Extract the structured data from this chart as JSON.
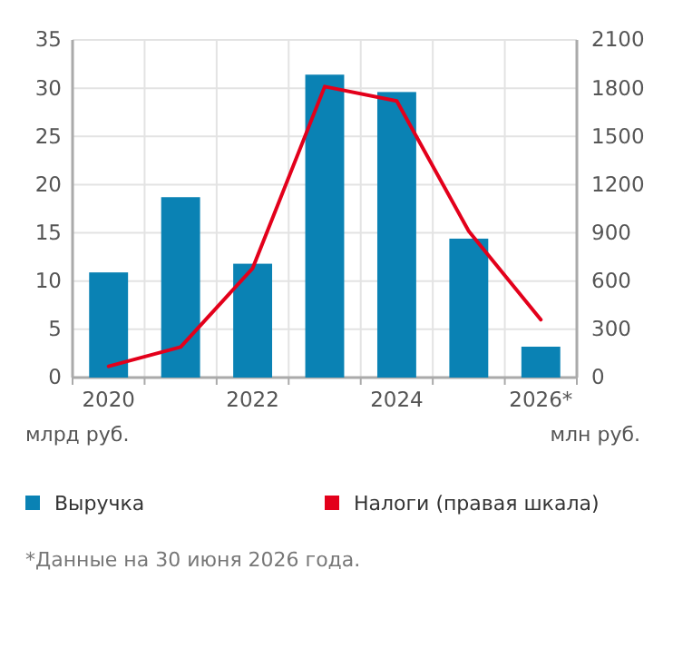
{
  "chart_data": {
    "type": "bar",
    "categories": [
      "2020",
      null,
      "2022",
      null,
      "2024",
      null,
      "2026*"
    ],
    "series": [
      {
        "name": "Выручка",
        "color": "#0a82b4",
        "values": [
          10.9,
          18.7,
          11.8,
          31.4,
          29.6,
          14.4,
          3.2
        ]
      },
      {
        "name": "Налоги (правая шкала)",
        "type": "line",
        "axis": "y2",
        "color": "#e3001b",
        "values": [
          70,
          190,
          680,
          1810,
          1720,
          910,
          360
        ]
      }
    ],
    "ylim": [
      0,
      35
    ],
    "yticks": [
      0,
      5,
      10,
      15,
      20,
      25,
      30,
      35
    ],
    "y2lim": [
      0,
      2100
    ],
    "y2ticks": [
      0,
      300,
      600,
      900,
      1200,
      1500,
      1800,
      2100
    ],
    "ylabel": "млрд руб.",
    "y2label": "млн руб.",
    "grid": true,
    "legend": "bottom",
    "marker": "none",
    "line_style": "solid",
    "annotations": [
      "*Данные на 30 июня 2026 года."
    ]
  }
}
